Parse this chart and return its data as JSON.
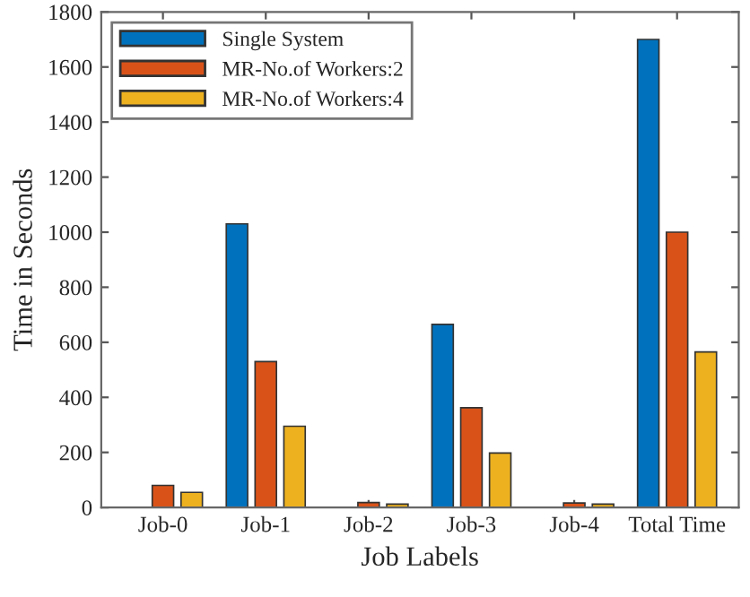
{
  "chart_data": {
    "type": "bar",
    "xlabel": "Job Labels",
    "ylabel": "Time in Seconds",
    "categories": [
      "Job-0",
      "Job-1",
      "Job-2",
      "Job-3",
      "Job-4",
      "Total Time"
    ],
    "series": [
      {
        "name": "Single System",
        "color": "#0072bd",
        "values": [
          null,
          1030,
          null,
          665,
          null,
          1700
        ]
      },
      {
        "name": "MR-No.of Workers:2",
        "color": "#d95319",
        "values": [
          80,
          530,
          18,
          362,
          16,
          1000
        ]
      },
      {
        "name": "MR-No.of Workers:4",
        "color": "#edb120",
        "values": [
          55,
          295,
          12,
          198,
          12,
          565
        ]
      }
    ],
    "ylim": [
      0,
      1800
    ],
    "yticks": [
      0,
      200,
      400,
      600,
      800,
      1000,
      1200,
      1400,
      1600,
      1800
    ],
    "grid": false,
    "legend": "top left"
  }
}
